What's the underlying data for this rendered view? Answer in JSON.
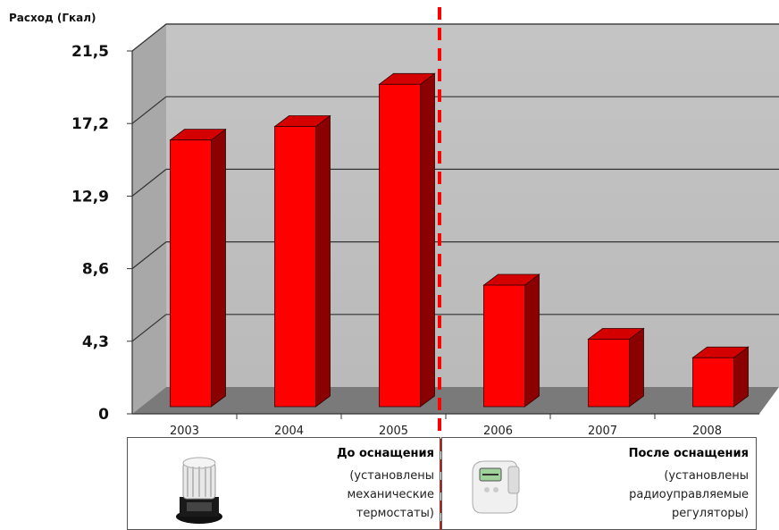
{
  "chart_data": {
    "type": "bar",
    "ylabel": "Расход (Гкал)",
    "ylim": [
      0,
      21.5
    ],
    "yticks": [
      "0",
      "4,3",
      "8,6",
      "12,9",
      "17,2",
      "21,5"
    ],
    "categories": [
      "2003",
      "2004",
      "2005",
      "2006",
      "2007",
      "2008"
    ],
    "values": [
      15.8,
      16.6,
      19.1,
      7.2,
      4.0,
      2.9
    ],
    "grid": true,
    "bar_color": "#ff0000",
    "bar_side_color": "#8b0000",
    "bar_top_color": "#d40000",
    "plot_background": "#c0c0c0",
    "floor_color": "#7a7a7a",
    "divider_color": "#ff0000",
    "divider_style": "dashed"
  },
  "legend": {
    "before": {
      "title": "До оснащения",
      "lines": [
        "(установлены",
        "механические",
        "термостаты)"
      ],
      "icon": "mechanical-thermostat-icon"
    },
    "after": {
      "title": "После оснащения",
      "lines": [
        "(установлены",
        "радиоуправляемые",
        "регуляторы)"
      ],
      "icon": "radio-regulator-icon"
    }
  }
}
